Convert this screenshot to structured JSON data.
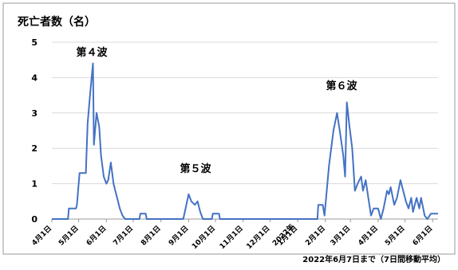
{
  "chart_data": {
    "type": "line",
    "title": "死亡者数（名）",
    "footnote": "2022年6月7日まで（7日間移動平均）",
    "annotations": [
      "第４波",
      "第５波",
      "第６波"
    ],
    "year_label": "2022年",
    "x": [
      0,
      18,
      19,
      27,
      28,
      31,
      38,
      40,
      43,
      46,
      47,
      50,
      53,
      55,
      58,
      61,
      63,
      66,
      69,
      71,
      74,
      76,
      79,
      82,
      98,
      99,
      105,
      106,
      147,
      153,
      156,
      160,
      163,
      166,
      169,
      179,
      180,
      187,
      188,
      297,
      298,
      303,
      305,
      310,
      315,
      319,
      322,
      326,
      328,
      330,
      333,
      336,
      339,
      342,
      346,
      348,
      351,
      354,
      357,
      360,
      365,
      368,
      371,
      375,
      377,
      379,
      383,
      386,
      390,
      393,
      396,
      399,
      402,
      404,
      408,
      411,
      413,
      417,
      420,
      424,
      432
    ],
    "series": [
      {
        "name": "死亡者数",
        "color": "#4472c4",
        "values": [
          0,
          0,
          0.3,
          0.3,
          0.4,
          1.3,
          1.3,
          2.7,
          3.6,
          4.4,
          2.1,
          3.0,
          2.6,
          1.8,
          1.2,
          1.0,
          1.1,
          1.6,
          1.0,
          0.8,
          0.5,
          0.3,
          0.1,
          0,
          0,
          0.15,
          0.15,
          0,
          0,
          0.7,
          0.5,
          0.4,
          0.5,
          0.2,
          0,
          0,
          0.15,
          0.15,
          0,
          0,
          0.4,
          0.4,
          0.1,
          1.5,
          2.5,
          3.0,
          2.5,
          1.8,
          1.2,
          3.3,
          2.6,
          2.0,
          0.8,
          1.0,
          1.2,
          0.8,
          1.1,
          0.6,
          0.1,
          0.3,
          0.3,
          0,
          0.3,
          0.8,
          0.7,
          0.9,
          0.4,
          0.6,
          1.1,
          0.8,
          0.5,
          0.3,
          0.6,
          0.2,
          0.6,
          0.3,
          0.6,
          0.1,
          0,
          0.15,
          0.15
        ]
      }
    ],
    "xlim": [
      0,
      432
    ],
    "xticks": [
      {
        "value": 0,
        "label": "4月1日"
      },
      {
        "value": 30,
        "label": "5月1日"
      },
      {
        "value": 61,
        "label": "6月1日"
      },
      {
        "value": 91,
        "label": "7月1日"
      },
      {
        "value": 122,
        "label": "8月1日"
      },
      {
        "value": 153,
        "label": "9月1日"
      },
      {
        "value": 183,
        "label": "10月1日"
      },
      {
        "value": 214,
        "label": "11月1日"
      },
      {
        "value": 244,
        "label": "12月1日"
      },
      {
        "value": 275,
        "label": "1月1日"
      },
      {
        "value": 306,
        "label": "2月1日"
      },
      {
        "value": 334,
        "label": "3月1日"
      },
      {
        "value": 365,
        "label": "4月1日"
      },
      {
        "value": 395,
        "label": "5月1日"
      },
      {
        "value": 426,
        "label": "6月1日"
      }
    ],
    "ylim": [
      0,
      5
    ],
    "yticks": [
      0,
      1,
      2,
      3,
      4,
      5
    ],
    "grid": true
  }
}
